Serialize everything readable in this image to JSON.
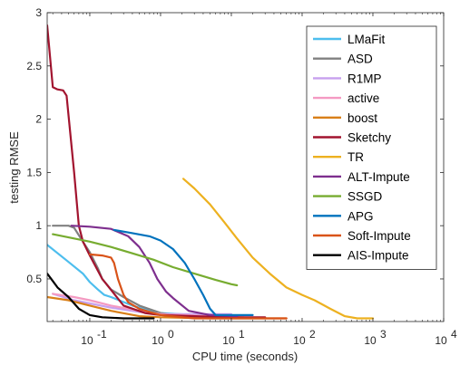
{
  "chart_data": {
    "type": "line",
    "xlabel": "CPU time (seconds)",
    "ylabel": "testing RMSE",
    "xscale": "log",
    "xlim": [
      0.025,
      10000
    ],
    "ylim": [
      0.1,
      3
    ],
    "xticks": [
      {
        "value": 0.1,
        "base": "10",
        "exp": "-1"
      },
      {
        "value": 1,
        "base": "10",
        "exp": "0"
      },
      {
        "value": 10,
        "base": "10",
        "exp": "1"
      },
      {
        "value": 100,
        "base": "10",
        "exp": "2"
      },
      {
        "value": 1000,
        "base": "10",
        "exp": "3"
      },
      {
        "value": 10000,
        "base": "10",
        "exp": "4"
      }
    ],
    "yticks": [
      {
        "value": 0.5,
        "label": "0.5"
      },
      {
        "value": 1,
        "label": "1"
      },
      {
        "value": 1.5,
        "label": "1.5"
      },
      {
        "value": 2,
        "label": "2"
      },
      {
        "value": 2.5,
        "label": "2.5"
      },
      {
        "value": 3,
        "label": "3"
      }
    ],
    "grid": false,
    "legend_position": "top-right",
    "series": [
      {
        "name": "LMaFit",
        "color": "#4DBEEE",
        "points": [
          [
            0.025,
            0.82
          ],
          [
            0.05,
            0.66
          ],
          [
            0.08,
            0.55
          ],
          [
            0.1,
            0.47
          ],
          [
            0.13,
            0.4
          ],
          [
            0.16,
            0.35
          ],
          [
            0.2,
            0.33
          ],
          [
            0.4,
            0.25
          ],
          [
            0.7,
            0.2
          ],
          [
            1,
            0.18
          ],
          [
            3,
            0.16
          ],
          [
            8,
            0.16
          ]
        ]
      },
      {
        "name": "ASD",
        "color": "#808080",
        "points": [
          [
            0.03,
            1.0
          ],
          [
            0.05,
            1.0
          ],
          [
            0.06,
            0.98
          ],
          [
            0.08,
            0.85
          ],
          [
            0.1,
            0.75
          ],
          [
            0.13,
            0.6
          ],
          [
            0.15,
            0.5
          ],
          [
            0.2,
            0.4
          ],
          [
            0.3,
            0.33
          ],
          [
            0.5,
            0.25
          ],
          [
            1,
            0.18
          ],
          [
            2,
            0.15
          ],
          [
            5,
            0.15
          ]
        ]
      },
      {
        "name": "R1MP",
        "color": "#C7A0EE",
        "points": [
          [
            0.03,
            0.36
          ],
          [
            0.06,
            0.3
          ],
          [
            0.1,
            0.27
          ],
          [
            0.2,
            0.23
          ],
          [
            0.5,
            0.19
          ],
          [
            1,
            0.17
          ],
          [
            3,
            0.17
          ],
          [
            10,
            0.17
          ]
        ]
      },
      {
        "name": "active",
        "color": "#F49AC2",
        "points": [
          [
            0.03,
            0.36
          ],
          [
            0.06,
            0.33
          ],
          [
            0.1,
            0.3
          ],
          [
            0.2,
            0.25
          ],
          [
            0.5,
            0.2
          ],
          [
            1,
            0.17
          ],
          [
            5,
            0.15
          ],
          [
            15,
            0.14
          ]
        ]
      },
      {
        "name": "boost",
        "color": "#D97F18",
        "points": [
          [
            0.025,
            0.33
          ],
          [
            0.05,
            0.3
          ],
          [
            0.1,
            0.25
          ],
          [
            0.2,
            0.2
          ],
          [
            0.5,
            0.15
          ],
          [
            1,
            0.14
          ],
          [
            5,
            0.13
          ],
          [
            20,
            0.13
          ],
          [
            60,
            0.13
          ]
        ]
      },
      {
        "name": "Sketchy",
        "color": "#A2142F",
        "points": [
          [
            0.025,
            2.88
          ],
          [
            0.03,
            2.3
          ],
          [
            0.035,
            2.28
          ],
          [
            0.042,
            2.27
          ],
          [
            0.047,
            2.22
          ],
          [
            0.06,
            1.5
          ],
          [
            0.07,
            1.0
          ],
          [
            0.08,
            0.85
          ],
          [
            0.1,
            0.72
          ],
          [
            0.15,
            0.5
          ],
          [
            0.3,
            0.25
          ],
          [
            0.6,
            0.18
          ],
          [
            1,
            0.16
          ],
          [
            3,
            0.15
          ],
          [
            10,
            0.14
          ],
          [
            30,
            0.14
          ]
        ]
      },
      {
        "name": "TR",
        "color": "#EDB120",
        "points": [
          [
            2.1,
            1.44
          ],
          [
            3,
            1.35
          ],
          [
            5,
            1.2
          ],
          [
            8,
            1.03
          ],
          [
            12,
            0.88
          ],
          [
            20,
            0.7
          ],
          [
            35,
            0.55
          ],
          [
            60,
            0.42
          ],
          [
            100,
            0.35
          ],
          [
            150,
            0.3
          ],
          [
            250,
            0.22
          ],
          [
            400,
            0.15
          ],
          [
            600,
            0.13
          ],
          [
            1000,
            0.13
          ]
        ]
      },
      {
        "name": "ALT-Impute",
        "color": "#7E2F8E",
        "points": [
          [
            0.055,
            1.0
          ],
          [
            0.1,
            0.99
          ],
          [
            0.2,
            0.97
          ],
          [
            0.35,
            0.9
          ],
          [
            0.5,
            0.8
          ],
          [
            0.7,
            0.65
          ],
          [
            0.9,
            0.5
          ],
          [
            1.2,
            0.38
          ],
          [
            1.5,
            0.32
          ],
          [
            2.5,
            0.2
          ],
          [
            5,
            0.16
          ],
          [
            12,
            0.15
          ]
        ]
      },
      {
        "name": "SSGD",
        "color": "#77AC30",
        "points": [
          [
            0.03,
            0.92
          ],
          [
            0.06,
            0.88
          ],
          [
            0.1,
            0.85
          ],
          [
            0.2,
            0.8
          ],
          [
            0.4,
            0.74
          ],
          [
            0.8,
            0.68
          ],
          [
            1.5,
            0.61
          ],
          [
            3,
            0.55
          ],
          [
            6,
            0.49
          ],
          [
            10,
            0.45
          ],
          [
            12,
            0.44
          ]
        ]
      },
      {
        "name": "APG",
        "color": "#0072BD",
        "points": [
          [
            0.22,
            0.96
          ],
          [
            0.4,
            0.93
          ],
          [
            0.7,
            0.9
          ],
          [
            1,
            0.86
          ],
          [
            1.5,
            0.78
          ],
          [
            2.2,
            0.65
          ],
          [
            3,
            0.5
          ],
          [
            4,
            0.35
          ],
          [
            5,
            0.22
          ],
          [
            6,
            0.16
          ],
          [
            8,
            0.16
          ],
          [
            20,
            0.16
          ]
        ]
      },
      {
        "name": "Soft-Impute",
        "color": "#D95319",
        "points": [
          [
            0.1,
            0.73
          ],
          [
            0.15,
            0.72
          ],
          [
            0.2,
            0.7
          ],
          [
            0.22,
            0.65
          ],
          [
            0.25,
            0.5
          ],
          [
            0.3,
            0.35
          ],
          [
            0.35,
            0.28
          ],
          [
            0.5,
            0.22
          ],
          [
            1,
            0.16
          ],
          [
            3,
            0.13
          ],
          [
            10,
            0.13
          ],
          [
            60,
            0.13
          ]
        ]
      },
      {
        "name": "AIS-Impute",
        "color": "#000000",
        "points": [
          [
            0.025,
            0.55
          ],
          [
            0.03,
            0.48
          ],
          [
            0.035,
            0.42
          ],
          [
            0.05,
            0.33
          ],
          [
            0.07,
            0.22
          ],
          [
            0.1,
            0.16
          ],
          [
            0.15,
            0.14
          ],
          [
            0.3,
            0.13
          ],
          [
            0.8,
            0.13
          ]
        ]
      }
    ]
  }
}
